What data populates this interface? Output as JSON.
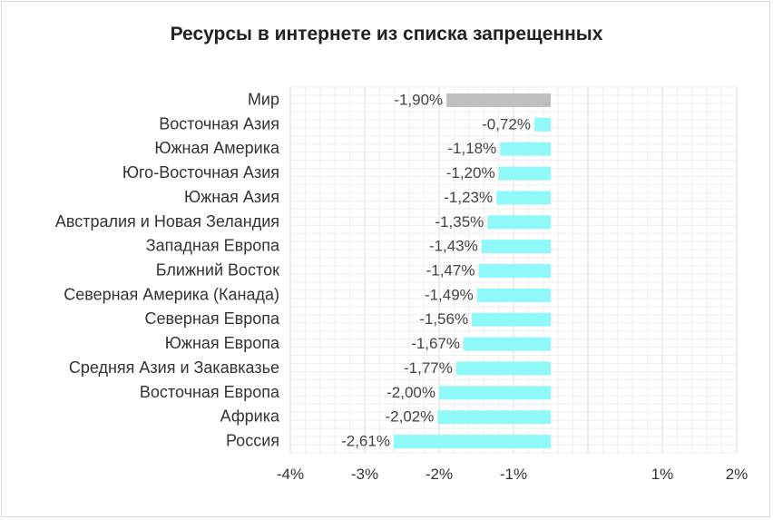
{
  "chart_data": {
    "type": "bar",
    "orientation": "horizontal",
    "title": "Ресурсы в интернете из списка запрещенных",
    "categories": [
      "Мир",
      "Восточная Азия",
      "Южная Америка",
      "Юго-Восточная Азия",
      "Южная Азия",
      "Австралия и Новая Зеландия",
      "Западная Европа",
      "Ближний Восток",
      "Северная Америка (Канада)",
      "Северная Европа",
      "Южная Европа",
      "Средняя Азия и Закавказье",
      "Восточная Европа",
      "Африка",
      "Россия"
    ],
    "values": [
      -1.9,
      -0.72,
      -1.18,
      -1.2,
      -1.23,
      -1.35,
      -1.43,
      -1.47,
      -1.49,
      -1.56,
      -1.67,
      -1.77,
      -2.0,
      -2.02,
      -2.61
    ],
    "data_labels": [
      "-1,90%",
      "-0,72%",
      "-1,18%",
      "-1,20%",
      "-1,23%",
      "-1,35%",
      "-1,43%",
      "-1,47%",
      "-1,49%",
      "-1,56%",
      "-1,67%",
      "-1,77%",
      "-2,00%",
      "-2,02%",
      "-2,61%"
    ],
    "xlim": [
      -4,
      2
    ],
    "bar_baseline": -0.5,
    "x_ticks": [
      -4,
      -3,
      -2,
      -1,
      1,
      2
    ],
    "x_tick_labels": [
      "-4%",
      "-3%",
      "-2%",
      "-1%",
      "1%",
      "2%"
    ],
    "grid": true,
    "legend": "none",
    "colors": {
      "highlight": "#bfbfbf",
      "default": "#8ff8f8",
      "grid_major": "#d9d9d9",
      "grid_minor": "#eeeeee",
      "text": "#333333"
    },
    "highlight_index": 0
  }
}
